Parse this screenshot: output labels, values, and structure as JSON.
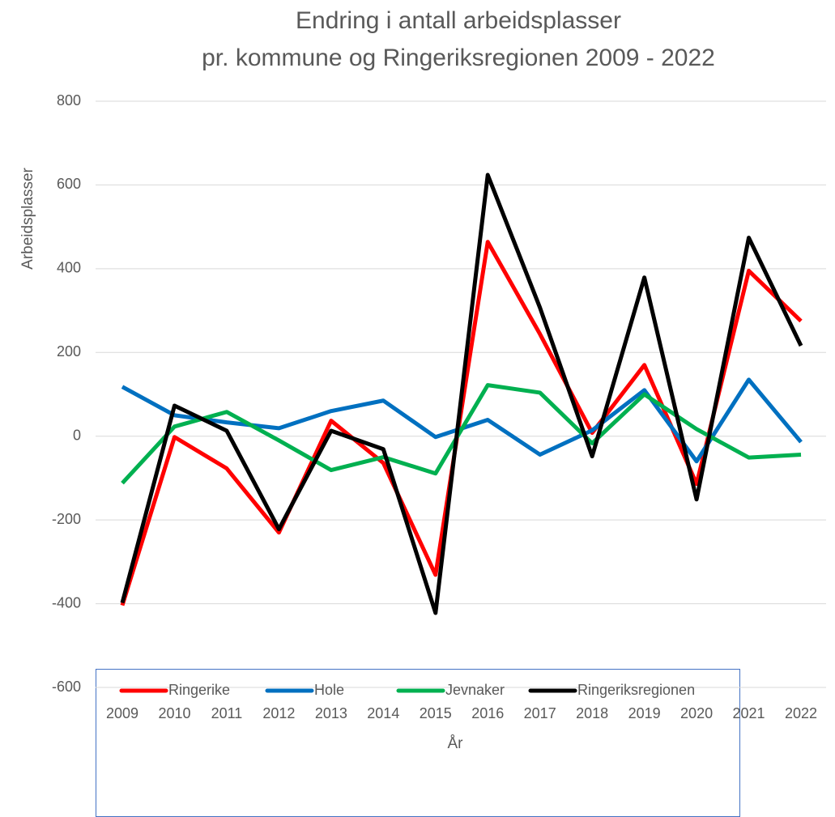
{
  "chart_data": {
    "type": "line",
    "title": [
      "Endring i antall arbeidsplasser",
      "pr. kommune og Ringeriksregionen 2009 - 2022"
    ],
    "x_label": "År",
    "y_label": "Arbeidsplasser",
    "categories": [
      "2009",
      "2010",
      "2011",
      "2012",
      "2013",
      "2014",
      "2015",
      "2016",
      "2017",
      "2018",
      "2019",
      "2020",
      "2021",
      "2022"
    ],
    "series": [
      {
        "name": "Ringerike",
        "color": "#ff0000",
        "values": [
          -404,
          -2,
          -77,
          -230,
          37,
          -64,
          -331,
          464,
          244,
          8,
          170,
          -114,
          395,
          275
        ]
      },
      {
        "name": "Hole",
        "color": "#0070c0",
        "values": [
          118,
          50,
          33,
          19,
          60,
          85,
          -2,
          39,
          -44,
          14,
          110,
          -60,
          135,
          -14
        ]
      },
      {
        "name": "Jevnaker",
        "color": "#00b050",
        "values": [
          -112,
          23,
          58,
          -10,
          -81,
          -50,
          -89,
          122,
          104,
          -17,
          100,
          17,
          -51,
          -44
        ]
      },
      {
        "name": "Ringeriksregionen",
        "color": "#000000",
        "values": [
          -398,
          73,
          13,
          -222,
          13,
          -31,
          -422,
          624,
          307,
          -48,
          379,
          -151,
          474,
          216
        ]
      }
    ],
    "ylim": [
      -600,
      800
    ],
    "yticks": [
      -600,
      -400,
      -200,
      0,
      200,
      400,
      600,
      800
    ],
    "grid": true,
    "legend": "bottom"
  }
}
